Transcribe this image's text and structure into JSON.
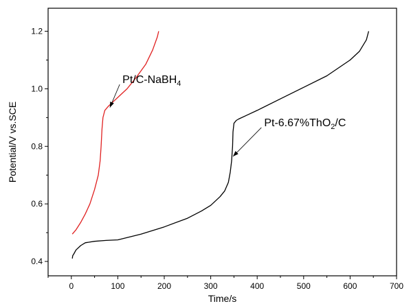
{
  "chart_data": {
    "type": "line",
    "title": "",
    "xlabel": "Time/s",
    "ylabel": "Potential/V vs.SCE",
    "xlim": [
      -50,
      700
    ],
    "ylim": [
      0.35,
      1.28
    ],
    "x_ticks": [
      0,
      100,
      200,
      300,
      400,
      500,
      600,
      700
    ],
    "y_ticks": [
      0.4,
      0.6,
      0.8,
      1.0,
      1.2
    ],
    "x_tick_labels": [
      "0",
      "100",
      "200",
      "300",
      "400",
      "500",
      "600",
      "700"
    ],
    "y_tick_labels": [
      "0.4",
      "0.6",
      "0.8",
      "1.0",
      "1.2"
    ],
    "grid": false,
    "legend": "none",
    "series": [
      {
        "color": "#e02020",
        "x": [
          2,
          10,
          20,
          30,
          40,
          50,
          58,
          62,
          64,
          66,
          68,
          72,
          80,
          90,
          100,
          120,
          140,
          160,
          175,
          185,
          188
        ],
        "y": [
          0.495,
          0.51,
          0.535,
          0.565,
          0.6,
          0.65,
          0.7,
          0.75,
          0.8,
          0.86,
          0.9,
          0.925,
          0.94,
          0.955,
          0.97,
          1.0,
          1.04,
          1.085,
          1.135,
          1.18,
          1.2
        ]
      },
      {
        "color": "#000000",
        "x": [
          2,
          3,
          5,
          10,
          20,
          30,
          50,
          75,
          100,
          150,
          200,
          250,
          280,
          300,
          320,
          330,
          338,
          342,
          345,
          347,
          348,
          350,
          355,
          360,
          380,
          400,
          450,
          500,
          550,
          600,
          620,
          635,
          640
        ],
        "y": [
          0.41,
          0.42,
          0.425,
          0.44,
          0.455,
          0.465,
          0.47,
          0.473,
          0.475,
          0.495,
          0.52,
          0.55,
          0.575,
          0.595,
          0.625,
          0.645,
          0.675,
          0.71,
          0.75,
          0.8,
          0.85,
          0.88,
          0.89,
          0.895,
          0.91,
          0.925,
          0.965,
          1.005,
          1.045,
          1.1,
          1.13,
          1.17,
          1.2
        ]
      }
    ],
    "annotations": [
      {
        "text_main": "Pt/C-NaBH",
        "text_sub": "4",
        "text_after": "",
        "x": 110,
        "y": 1.02,
        "arrow_to": [
          83,
          0.935
        ]
      },
      {
        "text_main": "Pt-6.67%ThO",
        "text_sub": "2",
        "text_after": "/C",
        "x": 415,
        "y": 0.87,
        "arrow_to": [
          348,
          0.765
        ]
      }
    ]
  }
}
